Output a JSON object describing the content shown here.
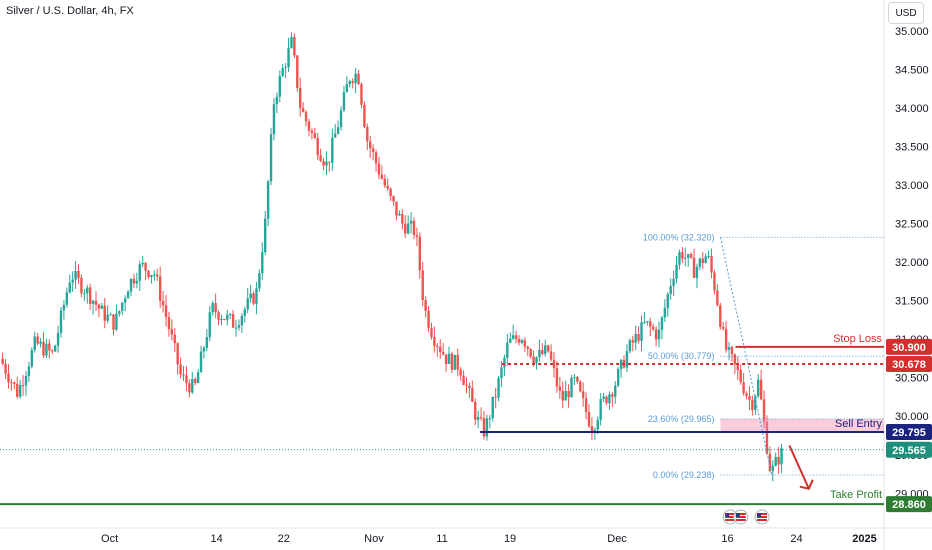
{
  "header": {
    "title": "Silver / U.S. Dollar, 4h, FX",
    "currency": "USD"
  },
  "colors": {
    "up": "#26a69a",
    "down": "#ef5350",
    "stop_loss": "#d32f2f",
    "entry": "#1a237e",
    "take_profit": "#2e7d32",
    "fib": "#5b9bd5",
    "current": "#1e8f7a"
  },
  "chart_data": {
    "type": "candlestick",
    "title": "Silver / U.S. Dollar, 4h, FX",
    "ylim": [
      28.55,
      35.4
    ],
    "y_ticks": [
      "35.000",
      "34.500",
      "34.000",
      "33.500",
      "33.000",
      "32.500",
      "32.000",
      "31.500",
      "31.000",
      "30.500",
      "30.000",
      "29.500",
      "29.000"
    ],
    "x_ticks": [
      {
        "label": "Oct",
        "x": 0.124,
        "bold": false
      },
      {
        "label": "14",
        "x": 0.245,
        "bold": false
      },
      {
        "label": "22",
        "x": 0.321,
        "bold": false
      },
      {
        "label": "Nov",
        "x": 0.423,
        "bold": false
      },
      {
        "label": "11",
        "x": 0.5,
        "bold": false
      },
      {
        "label": "19",
        "x": 0.577,
        "bold": false
      },
      {
        "label": "Dec",
        "x": 0.698,
        "bold": false
      },
      {
        "label": "16",
        "x": 0.823,
        "bold": false
      },
      {
        "label": "24",
        "x": 0.901,
        "bold": false
      },
      {
        "label": "2025",
        "x": 0.978,
        "bold": true
      }
    ],
    "price_path": [
      [
        0.0,
        30.75
      ],
      [
        0.02,
        30.3
      ],
      [
        0.04,
        30.95
      ],
      [
        0.06,
        30.8
      ],
      [
        0.08,
        31.85
      ],
      [
        0.1,
        31.6
      ],
      [
        0.115,
        31.35
      ],
      [
        0.13,
        31.2
      ],
      [
        0.145,
        31.7
      ],
      [
        0.16,
        31.95
      ],
      [
        0.175,
        31.85
      ],
      [
        0.19,
        31.2
      ],
      [
        0.205,
        30.5
      ],
      [
        0.22,
        30.35
      ],
      [
        0.24,
        31.4
      ],
      [
        0.265,
        31.2
      ],
      [
        0.29,
        31.6
      ],
      [
        0.3,
        32.5
      ],
      [
        0.31,
        34.1
      ],
      [
        0.32,
        34.5
      ],
      [
        0.33,
        34.85
      ],
      [
        0.34,
        34.0
      ],
      [
        0.355,
        33.6
      ],
      [
        0.37,
        33.25
      ],
      [
        0.385,
        33.9
      ],
      [
        0.395,
        34.4
      ],
      [
        0.405,
        34.45
      ],
      [
        0.415,
        33.6
      ],
      [
        0.425,
        33.3
      ],
      [
        0.44,
        32.85
      ],
      [
        0.455,
        32.5
      ],
      [
        0.47,
        32.4
      ],
      [
        0.48,
        31.4
      ],
      [
        0.49,
        31.05
      ],
      [
        0.505,
        30.75
      ],
      [
        0.52,
        30.65
      ],
      [
        0.54,
        29.95
      ],
      [
        0.548,
        29.8
      ],
      [
        0.56,
        30.25
      ],
      [
        0.575,
        30.95
      ],
      [
        0.59,
        31.05
      ],
      [
        0.605,
        30.75
      ],
      [
        0.62,
        30.85
      ],
      [
        0.635,
        30.2
      ],
      [
        0.65,
        30.45
      ],
      [
        0.67,
        29.85
      ],
      [
        0.68,
        30.15
      ],
      [
        0.695,
        30.4
      ],
      [
        0.71,
        30.85
      ],
      [
        0.73,
        31.2
      ],
      [
        0.745,
        31.05
      ],
      [
        0.76,
        31.8
      ],
      [
        0.77,
        32.15
      ],
      [
        0.785,
        31.9
      ],
      [
        0.8,
        32.1
      ],
      [
        0.81,
        31.6
      ],
      [
        0.82,
        30.9
      ],
      [
        0.835,
        30.55
      ],
      [
        0.85,
        30.15
      ],
      [
        0.858,
        30.45
      ],
      [
        0.866,
        29.75
      ],
      [
        0.872,
        29.25
      ],
      [
        0.88,
        29.45
      ],
      [
        0.887,
        29.56
      ]
    ],
    "current_price": "29.565",
    "fibonacci": {
      "x_start": 0.815,
      "x_end": 1.0,
      "levels": [
        {
          "label": "100.00% (32.320)",
          "price": 32.32
        },
        {
          "label": "50.00% (30.779)",
          "price": 30.779
        },
        {
          "label": "23.60% (29.965)",
          "price": 29.965
        },
        {
          "label": "0.00% (29.238)",
          "price": 29.238
        }
      ]
    },
    "trade_setup": {
      "stop_loss": {
        "label": "Stop Loss",
        "price": 30.9,
        "value": "30.900"
      },
      "resistance": {
        "price": 30.678,
        "value": "30.678"
      },
      "sell_entry": {
        "label": "Sell Entry",
        "price": 29.795,
        "value": "29.795"
      },
      "take_profit": {
        "label": "Take Profit",
        "price": 28.86,
        "value": "28.860"
      }
    }
  }
}
